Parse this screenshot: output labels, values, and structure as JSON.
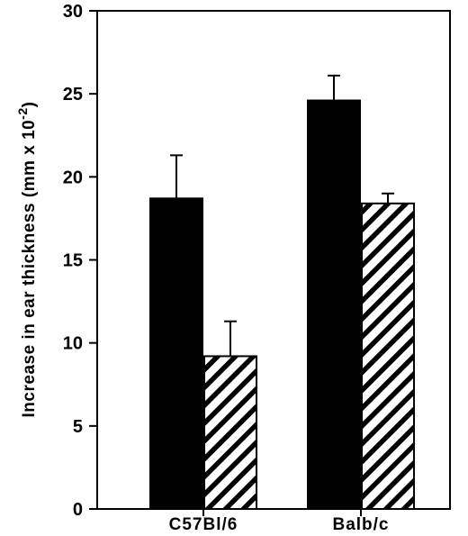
{
  "chart_data": {
    "type": "bar",
    "categories": [
      "C57Bl/6",
      "Balb/c"
    ],
    "series": [
      {
        "values": [
          18.7,
          24.6
        ],
        "errors": [
          2.6,
          1.5
        ],
        "fill": "solid-black"
      },
      {
        "values": [
          9.2,
          18.4
        ],
        "errors": [
          2.1,
          0.6
        ],
        "fill": "diagonal-hatch"
      }
    ],
    "ylabel": "Increase in ear thickness (mm x 10",
    "ylabel_superscript": "-2",
    "ylabel_close": ")",
    "ylim": [
      0,
      30
    ],
    "yticks": [
      "0",
      "5",
      "10",
      "15",
      "20",
      "25",
      "30"
    ],
    "ytick_values": [
      0,
      5,
      10,
      15,
      20,
      25,
      30
    ],
    "grid": false,
    "legend": "none",
    "colors": {
      "bar": "#000000",
      "background": "#ffffff"
    }
  }
}
